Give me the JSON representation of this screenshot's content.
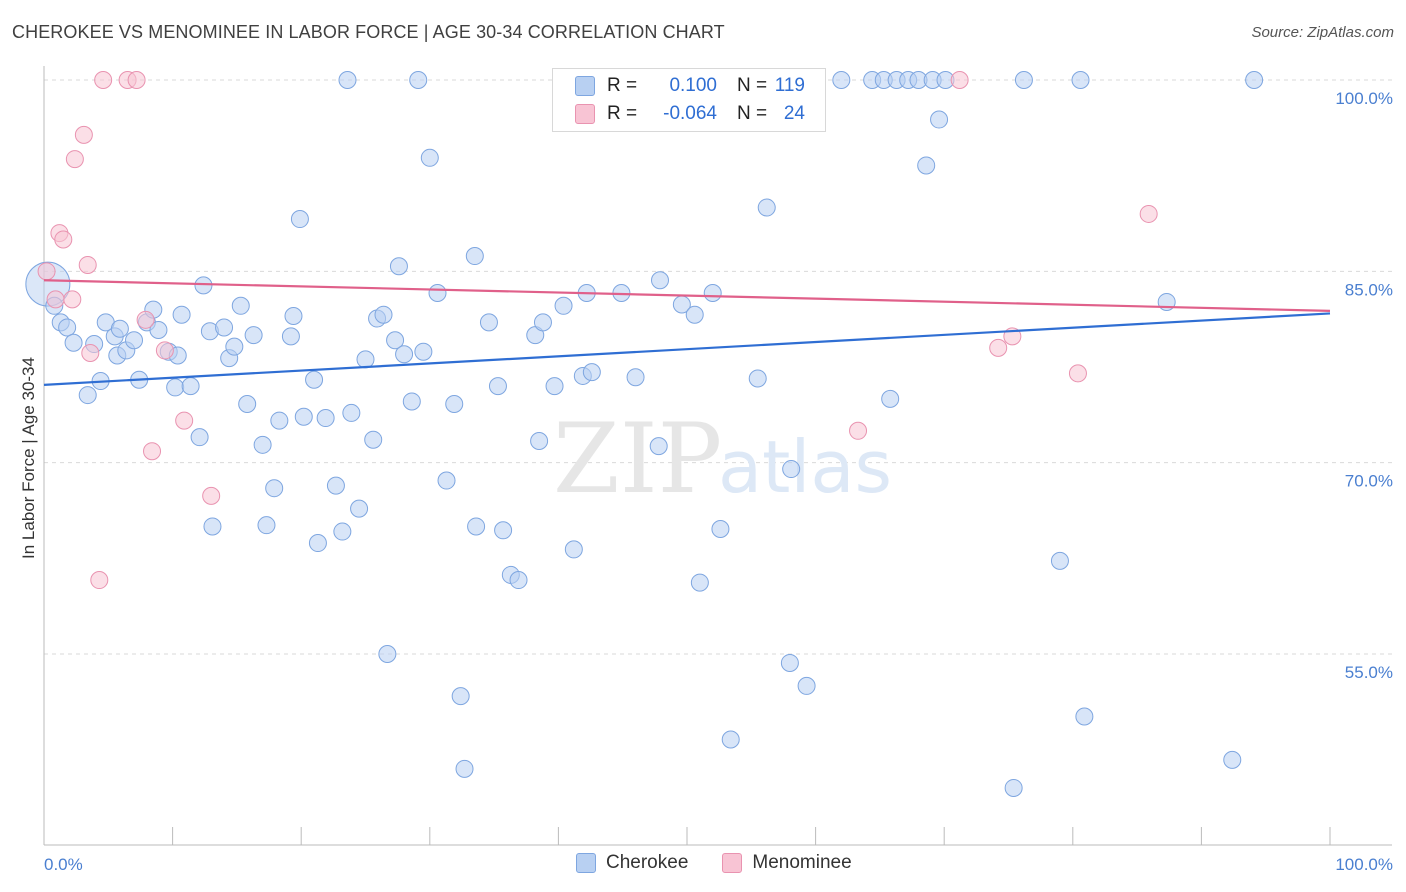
{
  "header": {
    "title": "CHEROKEE VS MENOMINEE IN LABOR FORCE | AGE 30-34 CORRELATION CHART",
    "source": "Source: ZipAtlas.com"
  },
  "legend": {
    "rows": [
      {
        "r_label": "R =",
        "r_value": "0.100",
        "n_label": "N =",
        "n_value": "119"
      },
      {
        "r_label": "R =",
        "r_value": "-0.064",
        "n_label": "N =",
        "n_value": "24"
      }
    ]
  },
  "bottom_legend": {
    "items": [
      {
        "label": "Cherokee"
      },
      {
        "label": "Menominee"
      }
    ]
  },
  "watermark": {
    "zip": "ZIP",
    "atlas": "atlas"
  },
  "colors": {
    "cherokee_fill": "#b8d0f2",
    "cherokee_stroke": "#7ea6e0",
    "cherokee_line": "#2f6ed3",
    "menominee_fill": "#f8c4d4",
    "menominee_stroke": "#e993b0",
    "menominee_line": "#e0608a",
    "grid": "#d9d9d9",
    "axis_label": "#4a7fd0"
  },
  "chart_data": {
    "type": "scatter",
    "title": "CHEROKEE VS MENOMINEE IN LABOR FORCE | AGE 30-34 CORRELATION CHART",
    "xlabel": "",
    "ylabel": "In Labor Force | Age 30-34",
    "xlim": [
      0,
      100
    ],
    "ylim": [
      40,
      101.5
    ],
    "x_tick_labels": [
      "0.0%",
      "100.0%"
    ],
    "y_ticks": [
      55,
      70,
      85,
      100
    ],
    "y_tick_labels": [
      "55.0%",
      "70.0%",
      "85.0%",
      "100.0%"
    ],
    "series": [
      {
        "name": "Cherokee",
        "r": 0.1,
        "n": 119,
        "trend": {
          "x": [
            0,
            100
          ],
          "y": [
            76.1,
            81.7
          ]
        },
        "points": [
          {
            "x": 0.3,
            "y": 84.0,
            "big": true
          },
          {
            "x": 0.8,
            "y": 82.3
          },
          {
            "x": 1.3,
            "y": 81.0
          },
          {
            "x": 1.8,
            "y": 80.6
          },
          {
            "x": 2.3,
            "y": 79.4
          },
          {
            "x": 3.4,
            "y": 75.3
          },
          {
            "x": 3.9,
            "y": 79.3
          },
          {
            "x": 4.4,
            "y": 76.4
          },
          {
            "x": 5.5,
            "y": 79.9
          },
          {
            "x": 4.8,
            "y": 81.0
          },
          {
            "x": 5.7,
            "y": 78.4
          },
          {
            "x": 5.9,
            "y": 80.5
          },
          {
            "x": 6.4,
            "y": 78.8
          },
          {
            "x": 7.0,
            "y": 79.6
          },
          {
            "x": 7.4,
            "y": 76.5
          },
          {
            "x": 8.0,
            "y": 81.0
          },
          {
            "x": 8.5,
            "y": 82.0
          },
          {
            "x": 8.9,
            "y": 80.4
          },
          {
            "x": 9.7,
            "y": 78.7
          },
          {
            "x": 10.2,
            "y": 75.9
          },
          {
            "x": 10.4,
            "y": 78.4
          },
          {
            "x": 10.7,
            "y": 81.6
          },
          {
            "x": 11.4,
            "y": 76.0
          },
          {
            "x": 12.1,
            "y": 72.0
          },
          {
            "x": 12.4,
            "y": 83.9
          },
          {
            "x": 12.9,
            "y": 80.3
          },
          {
            "x": 13.1,
            "y": 65.0
          },
          {
            "x": 14.0,
            "y": 80.6
          },
          {
            "x": 14.4,
            "y": 78.2
          },
          {
            "x": 14.8,
            "y": 79.1
          },
          {
            "x": 15.3,
            "y": 82.3
          },
          {
            "x": 15.8,
            "y": 74.6
          },
          {
            "x": 16.3,
            "y": 80.0
          },
          {
            "x": 17.0,
            "y": 71.4
          },
          {
            "x": 17.3,
            "y": 65.1
          },
          {
            "x": 17.9,
            "y": 68.0
          },
          {
            "x": 18.3,
            "y": 73.3
          },
          {
            "x": 19.2,
            "y": 79.9
          },
          {
            "x": 19.4,
            "y": 81.5
          },
          {
            "x": 19.9,
            "y": 89.1
          },
          {
            "x": 20.2,
            "y": 73.6
          },
          {
            "x": 21.0,
            "y": 76.5
          },
          {
            "x": 21.3,
            "y": 63.7
          },
          {
            "x": 21.9,
            "y": 73.5
          },
          {
            "x": 22.7,
            "y": 68.2
          },
          {
            "x": 23.2,
            "y": 64.6
          },
          {
            "x": 23.6,
            "y": 100.0
          },
          {
            "x": 23.9,
            "y": 73.9
          },
          {
            "x": 24.5,
            "y": 66.4
          },
          {
            "x": 25.0,
            "y": 78.1
          },
          {
            "x": 25.6,
            "y": 71.8
          },
          {
            "x": 25.9,
            "y": 81.3
          },
          {
            "x": 26.4,
            "y": 81.6
          },
          {
            "x": 26.7,
            "y": 55.0
          },
          {
            "x": 27.3,
            "y": 79.6
          },
          {
            "x": 27.6,
            "y": 85.4
          },
          {
            "x": 28.0,
            "y": 78.5
          },
          {
            "x": 28.6,
            "y": 74.8
          },
          {
            "x": 29.1,
            "y": 100.0
          },
          {
            "x": 29.5,
            "y": 78.7
          },
          {
            "x": 30.0,
            "y": 93.9
          },
          {
            "x": 30.6,
            "y": 83.3
          },
          {
            "x": 31.3,
            "y": 68.6
          },
          {
            "x": 31.9,
            "y": 74.6
          },
          {
            "x": 32.4,
            "y": 51.7
          },
          {
            "x": 32.7,
            "y": 46.0
          },
          {
            "x": 33.6,
            "y": 65.0
          },
          {
            "x": 33.5,
            "y": 86.2
          },
          {
            "x": 34.6,
            "y": 81.0
          },
          {
            "x": 35.3,
            "y": 76.0
          },
          {
            "x": 35.7,
            "y": 64.7
          },
          {
            "x": 36.3,
            "y": 61.2
          },
          {
            "x": 36.9,
            "y": 60.8
          },
          {
            "x": 38.2,
            "y": 80.0
          },
          {
            "x": 38.5,
            "y": 71.7
          },
          {
            "x": 38.8,
            "y": 81.0
          },
          {
            "x": 39.7,
            "y": 76.0
          },
          {
            "x": 40.4,
            "y": 82.3
          },
          {
            "x": 41.2,
            "y": 63.2
          },
          {
            "x": 41.9,
            "y": 76.8
          },
          {
            "x": 42.2,
            "y": 83.3
          },
          {
            "x": 42.6,
            "y": 77.1
          },
          {
            "x": 44.9,
            "y": 83.3
          },
          {
            "x": 46.0,
            "y": 76.7
          },
          {
            "x": 47.8,
            "y": 71.3
          },
          {
            "x": 47.9,
            "y": 84.3
          },
          {
            "x": 49.6,
            "y": 82.4
          },
          {
            "x": 50.6,
            "y": 81.6
          },
          {
            "x": 51.0,
            "y": 60.6
          },
          {
            "x": 52.0,
            "y": 83.3
          },
          {
            "x": 52.3,
            "y": 100.0
          },
          {
            "x": 52.6,
            "y": 64.8
          },
          {
            "x": 53.4,
            "y": 48.3
          },
          {
            "x": 55.5,
            "y": 76.6
          },
          {
            "x": 56.2,
            "y": 90.0
          },
          {
            "x": 57.5,
            "y": 100.0
          },
          {
            "x": 58.0,
            "y": 54.3
          },
          {
            "x": 58.1,
            "y": 69.5
          },
          {
            "x": 59.3,
            "y": 52.5
          },
          {
            "x": 62.0,
            "y": 100.0
          },
          {
            "x": 64.4,
            "y": 100.0
          },
          {
            "x": 65.3,
            "y": 100.0
          },
          {
            "x": 65.8,
            "y": 75.0
          },
          {
            "x": 66.3,
            "y": 100.0
          },
          {
            "x": 67.2,
            "y": 100.0
          },
          {
            "x": 68.0,
            "y": 100.0
          },
          {
            "x": 68.6,
            "y": 93.3
          },
          {
            "x": 69.1,
            "y": 100.0
          },
          {
            "x": 69.6,
            "y": 96.9
          },
          {
            "x": 70.1,
            "y": 100.0
          },
          {
            "x": 75.4,
            "y": 44.5
          },
          {
            "x": 76.2,
            "y": 100.0
          },
          {
            "x": 79.0,
            "y": 62.3
          },
          {
            "x": 80.6,
            "y": 100.0
          },
          {
            "x": 80.9,
            "y": 50.1
          },
          {
            "x": 87.3,
            "y": 82.6
          },
          {
            "x": 92.4,
            "y": 46.7
          },
          {
            "x": 94.1,
            "y": 100.0
          }
        ]
      },
      {
        "name": "Menominee",
        "r": -0.064,
        "n": 24,
        "trend": {
          "x": [
            0,
            100
          ],
          "y": [
            84.3,
            81.9
          ]
        },
        "points": [
          {
            "x": 0.2,
            "y": 85.0
          },
          {
            "x": 0.9,
            "y": 82.8
          },
          {
            "x": 1.2,
            "y": 88.0
          },
          {
            "x": 1.5,
            "y": 87.5
          },
          {
            "x": 2.2,
            "y": 82.8
          },
          {
            "x": 2.4,
            "y": 93.8
          },
          {
            "x": 3.1,
            "y": 95.7
          },
          {
            "x": 3.4,
            "y": 85.5
          },
          {
            "x": 3.6,
            "y": 78.6
          },
          {
            "x": 4.3,
            "y": 60.8
          },
          {
            "x": 4.6,
            "y": 100.0
          },
          {
            "x": 6.5,
            "y": 100.0
          },
          {
            "x": 7.2,
            "y": 100.0
          },
          {
            "x": 7.9,
            "y": 81.2
          },
          {
            "x": 8.4,
            "y": 70.9
          },
          {
            "x": 9.4,
            "y": 78.8
          },
          {
            "x": 10.9,
            "y": 73.3
          },
          {
            "x": 13.0,
            "y": 67.4
          },
          {
            "x": 63.3,
            "y": 72.5
          },
          {
            "x": 71.2,
            "y": 100.0
          },
          {
            "x": 74.2,
            "y": 79.0
          },
          {
            "x": 75.3,
            "y": 79.9
          },
          {
            "x": 80.4,
            "y": 77.0
          },
          {
            "x": 85.9,
            "y": 89.5
          }
        ]
      }
    ]
  }
}
